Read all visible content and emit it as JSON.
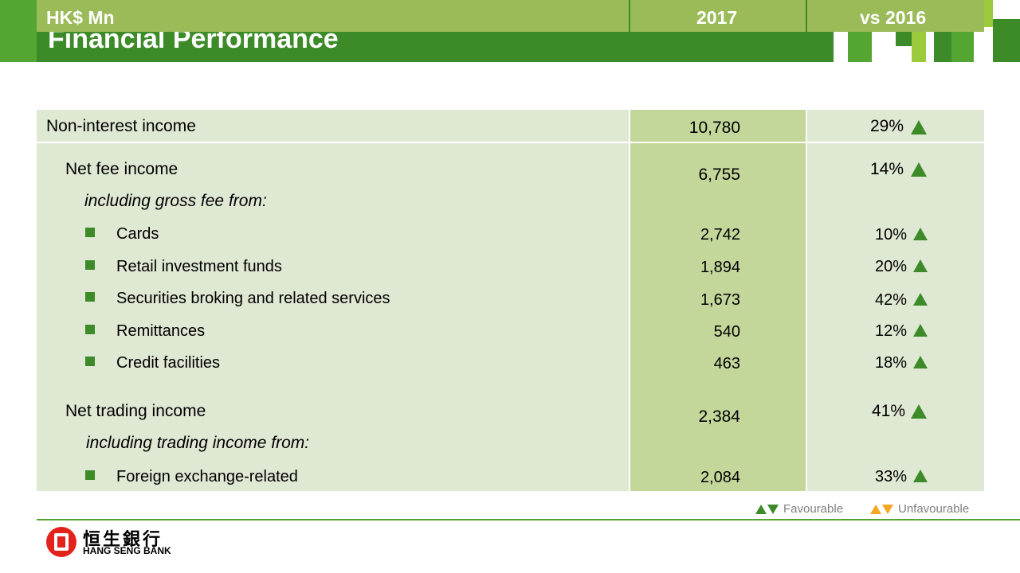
{
  "title": "Financial Performance",
  "header": {
    "label": "HK$ Mn",
    "col_2017": "2017",
    "col_vs": "vs 2016"
  },
  "rows": [
    {
      "label": "Non-interest income",
      "value": "10,780",
      "change": "29%"
    },
    {
      "label": "Net fee income",
      "value": "6,755",
      "change": "14%"
    },
    {
      "label": "including gross fee from:"
    },
    {
      "label": "Cards",
      "value": "2,742",
      "change": "10%"
    },
    {
      "label": "Retail investment funds",
      "value": "1,894",
      "change": "20%"
    },
    {
      "label": "Securities broking and related services",
      "value": "1,673",
      "change": "42%"
    },
    {
      "label": "Remittances",
      "value": "540",
      "change": "12%"
    },
    {
      "label": "Credit facilities",
      "value": "463",
      "change": "18%"
    },
    {
      "label": "Net trading income",
      "value": "2,384",
      "change": "41%"
    },
    {
      "label": "including trading income from:"
    },
    {
      "label": "Foreign exchange-related",
      "value": "2,084",
      "change": "33%"
    }
  ],
  "legend": {
    "favourable": "Favourable",
    "unfavourable": "Unfavourable"
  },
  "logo": {
    "chinese": "恒生銀行",
    "english": "HANG SENG BANK"
  },
  "colors": {
    "brand_green": "#3c8a28",
    "header_green": "#9bbb59",
    "row_light": "#dfe8d3",
    "row_mid": "#c4d79b",
    "unfavourable": "#f5a623",
    "logo_red": "#e3231b"
  }
}
